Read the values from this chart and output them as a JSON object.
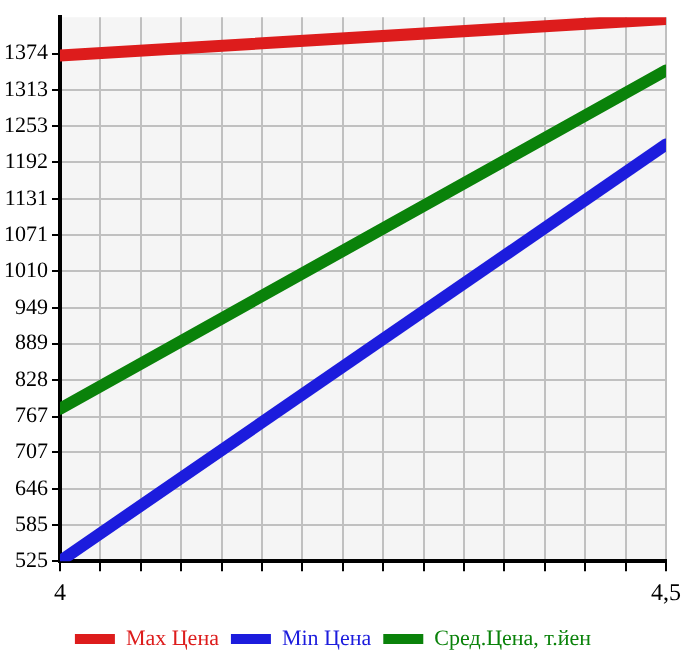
{
  "chart_data": {
    "type": "line",
    "x": [
      4,
      4.5
    ],
    "series": [
      {
        "name": "Max Цена",
        "color": "#dd1c1c",
        "values": [
          1371,
          1432
        ]
      },
      {
        "name": "Min Цена",
        "color": "#1c1cdd",
        "values": [
          525,
          1222
        ]
      },
      {
        "name": "Сред.Цена, т.йен",
        "color": "#0a820a",
        "values": [
          780,
          1346
        ]
      }
    ],
    "xlim": [
      4,
      4.5
    ],
    "xticks": [
      4,
      {
        "value": 4.0333,
        "label": null
      },
      {
        "value": 4.0667,
        "label": null
      },
      {
        "value": 4.1,
        "label": null
      },
      {
        "value": 4.1333,
        "label": null
      },
      {
        "value": 4.1667,
        "label": null
      },
      {
        "value": 4.2,
        "label": null
      },
      {
        "value": 4.2333,
        "label": null
      },
      {
        "value": 4.2667,
        "label": null
      },
      {
        "value": 4.3,
        "label": null
      },
      {
        "value": 4.3333,
        "label": null
      },
      {
        "value": 4.3667,
        "label": null
      },
      {
        "value": 4.4,
        "label": null
      },
      {
        "value": 4.4333,
        "label": null
      },
      {
        "value": 4.4667,
        "label": null
      },
      {
        "value": 4.5,
        "label": "4,5"
      }
    ],
    "ylim": [
      525,
      1435
    ],
    "yticks": [
      525,
      585,
      646,
      707,
      767,
      828,
      889,
      949,
      1010,
      1071,
      1131,
      1192,
      1253,
      1313,
      1374
    ],
    "grid": true,
    "legend": "bottom",
    "marker": "none",
    "line_style": "solid"
  }
}
